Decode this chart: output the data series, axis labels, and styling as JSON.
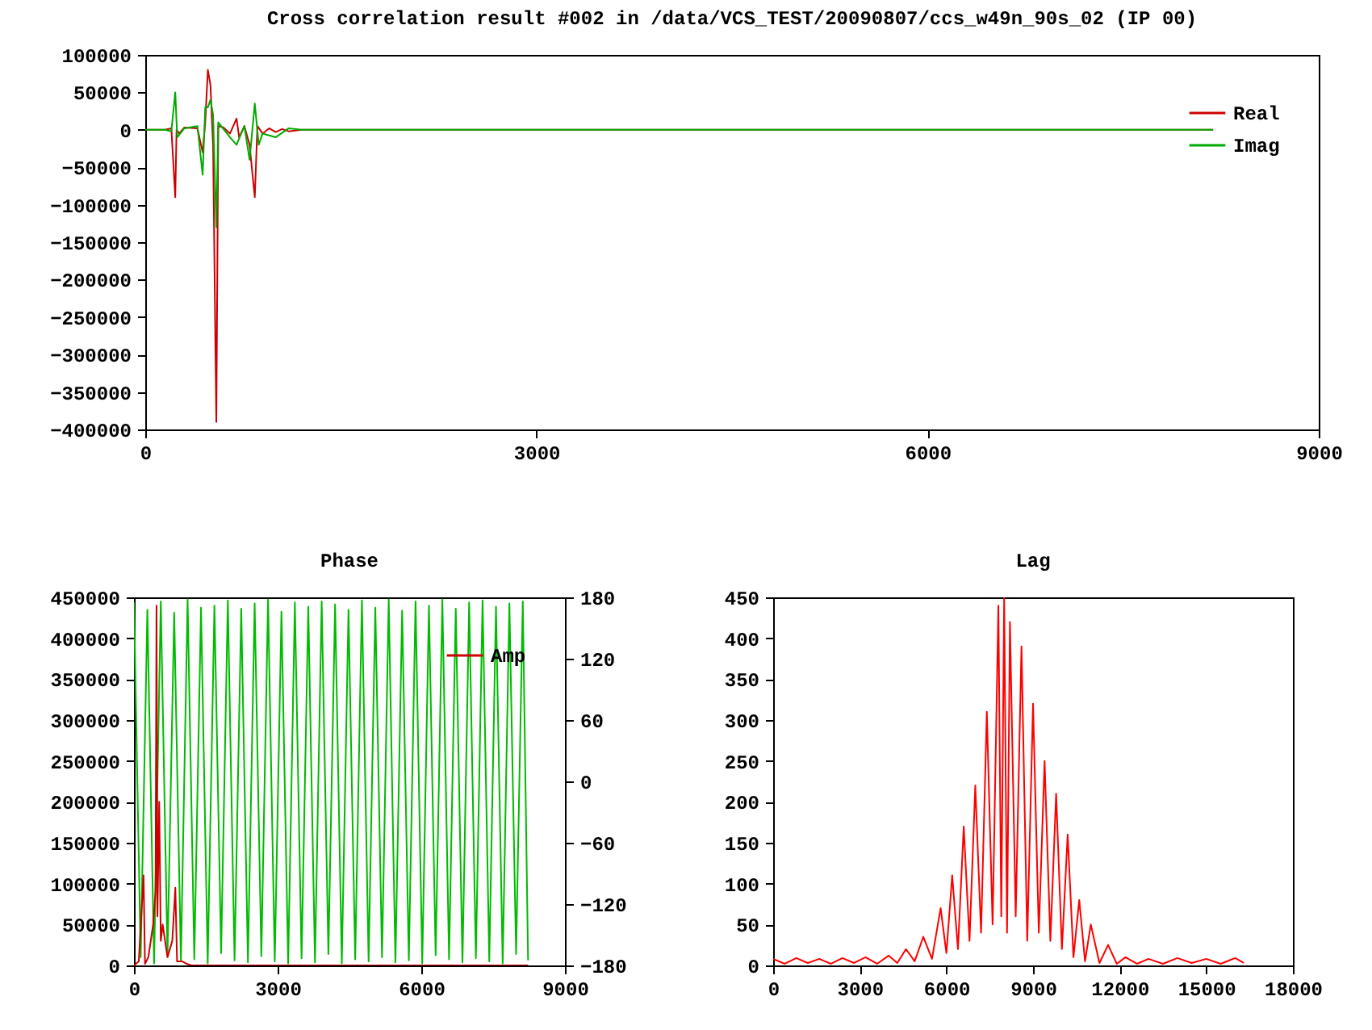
{
  "chart_data": [
    {
      "type": "line",
      "title": "Cross correlation result #002 in /data/VCS_TEST/20090807/ccs_w49n_90s_02 (IP 00)",
      "xlim": [
        0,
        9000
      ],
      "xticks": [
        0,
        3000,
        6000,
        9000
      ],
      "ylim": [
        -400000,
        100000
      ],
      "yticks": [
        -400000,
        -350000,
        -300000,
        -250000,
        -200000,
        -150000,
        -100000,
        -50000,
        0,
        50000,
        100000
      ],
      "grid": false,
      "legend": "top right",
      "series": [
        {
          "name": "Real",
          "color": "#cc0000",
          "x": [
            0,
            150,
            200,
            230,
            240,
            260,
            300,
            400,
            440,
            460,
            480,
            500,
            520,
            545,
            560,
            600,
            650,
            700,
            720,
            760,
            800,
            840,
            860,
            900,
            950,
            1000,
            1050,
            1100,
            1200,
            8190
          ],
          "values": [
            0,
            0,
            2000,
            -90000,
            0,
            -5000,
            3000,
            2000,
            -30000,
            10000,
            80000,
            60000,
            -20000,
            -390000,
            5000,
            3000,
            -5000,
            15000,
            -10000,
            5000,
            -20000,
            -90000,
            5000,
            -5000,
            2000,
            -3000,
            1000,
            -2000,
            0,
            0
          ]
        },
        {
          "name": "Imag",
          "color": "#00aa00",
          "x": [
            0,
            150,
            200,
            230,
            245,
            300,
            400,
            440,
            460,
            480,
            500,
            520,
            545,
            560,
            650,
            700,
            760,
            800,
            840,
            870,
            900,
            1000,
            1100,
            1200,
            8190
          ],
          "values": [
            0,
            0,
            -2000,
            50000,
            -10000,
            2000,
            5000,
            -60000,
            30000,
            30000,
            40000,
            20000,
            -130000,
            10000,
            -10000,
            -20000,
            5000,
            -40000,
            35000,
            -20000,
            -5000,
            -10000,
            2000,
            0,
            0
          ]
        }
      ]
    },
    {
      "type": "line",
      "title": "Phase",
      "xlim": [
        0,
        9000
      ],
      "xticks": [
        0,
        3000,
        6000,
        9000
      ],
      "ylim": [
        0,
        450000
      ],
      "yticks": [
        0,
        50000,
        100000,
        150000,
        200000,
        250000,
        300000,
        350000,
        400000,
        450000
      ],
      "y2lim": [
        -180,
        180
      ],
      "y2ticks": [
        -180,
        -120,
        -60,
        0,
        60,
        120,
        180
      ],
      "grid": false,
      "legend": "top right",
      "series": [
        {
          "color": "#00bb00",
          "axis": "y2",
          "x": [
            0,
            140,
            280,
            420,
            560,
            700,
            840,
            980,
            1120,
            1260,
            1400,
            1540,
            1680,
            1820,
            1960,
            2100,
            2240,
            2380,
            2520,
            2660,
            2800,
            2940,
            3080,
            3220,
            3360,
            3500,
            3640,
            3780,
            3920,
            4060,
            4200,
            4340,
            4480,
            4620,
            4760,
            4900,
            5040,
            5180,
            5320,
            5460,
            5600,
            5740,
            5880,
            6020,
            6160,
            6300,
            6440,
            6580,
            6720,
            6860,
            7000,
            7140,
            7280,
            7420,
            7560,
            7700,
            7840,
            7980,
            8120,
            8230
          ],
          "values": [
            175,
            -172,
            168,
            -178,
            176,
            -170,
            165,
            -176,
            178,
            -174,
            170,
            -178,
            172,
            -168,
            177,
            -175,
            169,
            -177,
            174,
            -171,
            178,
            -176,
            166,
            -178,
            175,
            -173,
            171,
            -177,
            176,
            -169,
            173,
            -178,
            168,
            -174,
            177,
            -176,
            170,
            -172,
            178,
            -177,
            167,
            -175,
            176,
            -178,
            172,
            -170,
            178,
            -174,
            169,
            -177,
            175,
            -173,
            177,
            -176,
            171,
            -178,
            174,
            -169,
            176,
            -175
          ]
        },
        {
          "name": "Amp",
          "color": "#cc0000",
          "x": [
            0,
            100,
            200,
            230,
            300,
            400,
            450,
            471,
            490,
            527,
            560,
            600,
            700,
            800,
            864,
            900,
            1000,
            1100,
            1200,
            8230
          ],
          "values": [
            0,
            5000,
            110000,
            2000,
            10000,
            50000,
            90000,
            440000,
            60000,
            200000,
            30000,
            50000,
            10000,
            30000,
            95000,
            5000,
            5000,
            2000,
            0,
            0
          ]
        }
      ]
    },
    {
      "type": "line",
      "title": "Lag",
      "xlim": [
        0,
        18000
      ],
      "xticks": [
        0,
        3000,
        6000,
        9000,
        12000,
        15000,
        18000
      ],
      "ylim": [
        0,
        450
      ],
      "yticks": [
        0,
        50,
        100,
        150,
        200,
        250,
        300,
        350,
        400,
        450
      ],
      "grid": false,
      "series": [
        {
          "color": "#ff0000",
          "x": [
            0,
            400,
            800,
            1200,
            1600,
            2000,
            2400,
            2800,
            3200,
            3600,
            4000,
            4300,
            4600,
            4900,
            5200,
            5500,
            5800,
            6000,
            6200,
            6400,
            6600,
            6800,
            7000,
            7200,
            7400,
            7600,
            7800,
            7900,
            8000,
            8100,
            8200,
            8400,
            8600,
            8800,
            9000,
            9200,
            9400,
            9600,
            9800,
            10000,
            10200,
            10400,
            10600,
            10800,
            11000,
            11300,
            11600,
            11900,
            12200,
            12600,
            13000,
            13500,
            14000,
            14500,
            15000,
            15500,
            16000,
            16300
          ],
          "values": [
            8,
            2,
            9,
            3,
            8,
            2,
            9,
            3,
            10,
            2,
            12,
            3,
            20,
            5,
            35,
            8,
            70,
            15,
            110,
            20,
            170,
            30,
            220,
            40,
            310,
            50,
            440,
            60,
            450,
            40,
            420,
            60,
            390,
            30,
            320,
            40,
            250,
            30,
            210,
            20,
            160,
            10,
            80,
            5,
            50,
            3,
            25,
            2,
            10,
            2,
            8,
            2,
            9,
            3,
            8,
            2,
            9,
            3
          ]
        }
      ]
    }
  ]
}
